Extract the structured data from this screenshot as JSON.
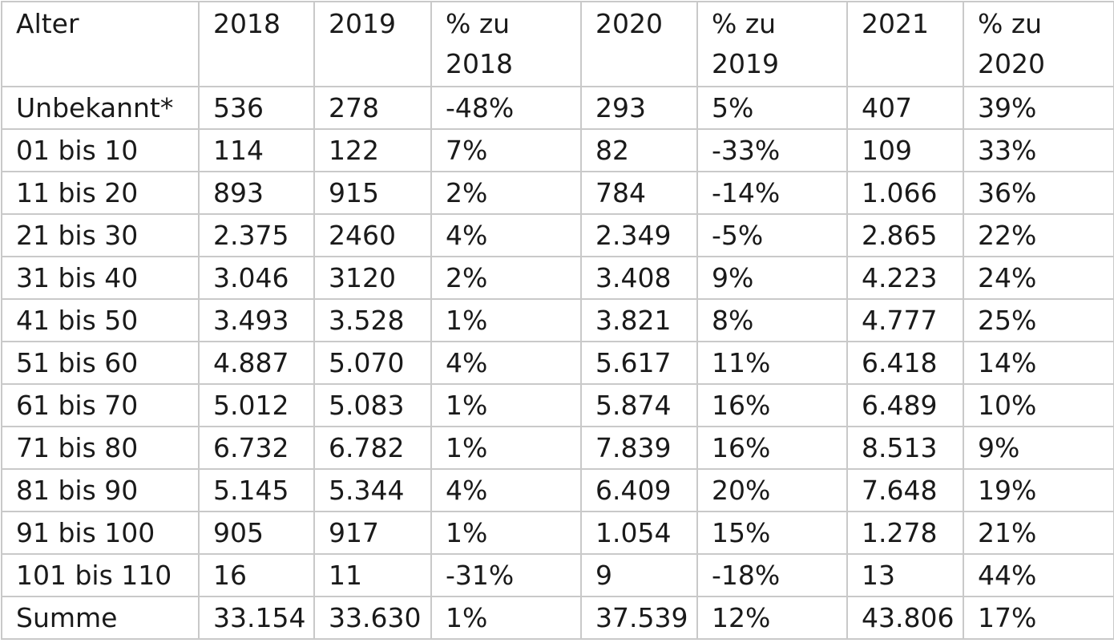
{
  "table": {
    "headers": [
      "Alter",
      "2018",
      "2019",
      "% zu 2018",
      "2020",
      "% zu 2019",
      "2021",
      "% zu 2020"
    ],
    "rows": [
      [
        "Unbekannt*",
        "536",
        "278",
        "-48%",
        "293",
        "5%",
        "407",
        "39%"
      ],
      [
        "01 bis 10",
        "114",
        "122",
        "7%",
        "82",
        "-33%",
        "109",
        "33%"
      ],
      [
        "11 bis 20",
        "893",
        "915",
        "2%",
        "784",
        "-14%",
        "1.066",
        "36%"
      ],
      [
        "21 bis 30",
        "2.375",
        "2460",
        "4%",
        "2.349",
        "-5%",
        "2.865",
        "22%"
      ],
      [
        "31 bis 40",
        "3.046",
        "3120",
        "2%",
        "3.408",
        "9%",
        "4.223",
        "24%"
      ],
      [
        "41 bis 50",
        "3.493",
        "3.528",
        "1%",
        "3.821",
        "8%",
        "4.777",
        "25%"
      ],
      [
        "51 bis 60",
        "4.887",
        "5.070",
        "4%",
        "5.617",
        "11%",
        "6.418",
        "14%"
      ],
      [
        "61 bis 70",
        "5.012",
        "5.083",
        "1%",
        "5.874",
        "16%",
        "6.489",
        "10%"
      ],
      [
        "71 bis 80",
        "6.732",
        "6.782",
        "1%",
        "7.839",
        "16%",
        "8.513",
        "9%"
      ],
      [
        "81 bis 90",
        "5.145",
        "5.344",
        "4%",
        "6.409",
        "20%",
        "7.648",
        "19%"
      ],
      [
        "91 bis 100",
        "905",
        "917",
        "1%",
        "1.054",
        "15%",
        "1.278",
        "21%"
      ],
      [
        "101 bis 110",
        "16",
        "11",
        "-31%",
        "9",
        "-18%",
        "13",
        "44%"
      ],
      [
        "Summe",
        "33.154",
        "33.630",
        "1%",
        "37.539",
        "12%",
        "43.806",
        "17%"
      ]
    ]
  }
}
